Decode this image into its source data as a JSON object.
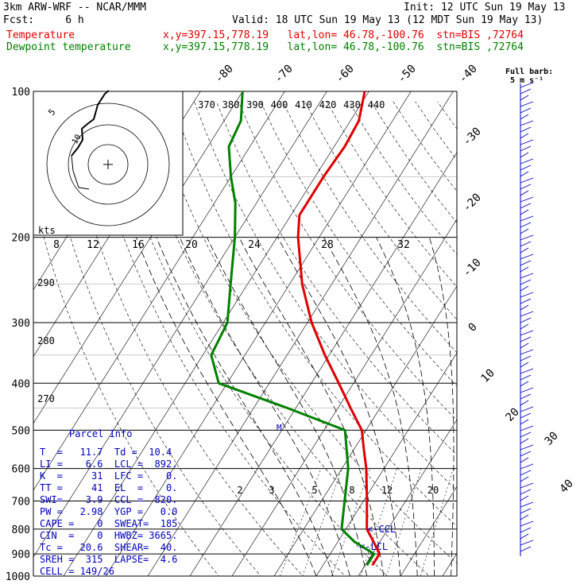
{
  "header": {
    "line1_left": "3km ARW-WRF -- NCAR/MMM",
    "line1_right": "Init: 12 UTC Sun 19 May 13",
    "line2_left": "Fcst:     6 h",
    "line2_right": "Valid: 18 UTC Sun 19 May 13 (12 MDT Sun 19 May 13)",
    "temp_label": "Temperature",
    "temp_info": "x,y=397.15,778.19   lat,lon= 46.78,-100.76  stn=BIS ,72764",
    "dew_label": "Dewpoint temperature",
    "dew_info": "x,y=397.15,778.19   lat,lon= 46.78,-100.76  stn=BIS ,72764",
    "colors": {
      "temperature": "#e00000",
      "dewpoint": "#008000",
      "info": "#0000c0"
    }
  },
  "chart_data": {
    "type": "line",
    "pressure_levels": [
      100,
      200,
      300,
      400,
      500,
      600,
      700,
      800,
      900,
      1000
    ],
    "pressure_labels": [
      "100",
      "200",
      "300",
      "400",
      "500",
      "600",
      "700",
      "800",
      "900",
      "1000"
    ],
    "isotherm_labels": [
      "-80",
      "-70",
      "-60",
      "-50",
      "-40",
      "-30",
      "-20",
      "-10",
      "0",
      "10",
      "20",
      "30",
      "40"
    ],
    "theta_labels": [
      "370",
      "380",
      "390",
      "400",
      "410",
      "420",
      "430",
      "440"
    ],
    "theta_side_labels": [
      "290",
      "280",
      "270"
    ],
    "mixing_ratio_labels": [
      "2",
      "3",
      "5",
      "8",
      "12",
      "20"
    ],
    "hodograph": {
      "unit_label": "kts",
      "ring_labels": [
        "8",
        "12",
        "16",
        "20",
        "24",
        "28",
        "32"
      ],
      "mark_labels": [
        "5",
        "5",
        "10"
      ]
    },
    "wind_barb_note": {
      "line1": "Full barb:",
      "line2": "5 m s⁻¹"
    },
    "annotations": {
      "ccl": "<-CCL",
      "lcl": "<-LCL",
      "m": "M"
    },
    "series": [
      {
        "name": "Temperature",
        "color": "#e00000",
        "profile": [
          [
            950,
            11.7
          ],
          [
            900,
            11.7
          ],
          [
            850,
            8.5
          ],
          [
            800,
            5.0
          ],
          [
            700,
            0.8
          ],
          [
            600,
            -4.2
          ],
          [
            550,
            -7.5
          ],
          [
            500,
            -11.0
          ],
          [
            450,
            -17.0
          ],
          [
            400,
            -23.5
          ],
          [
            350,
            -31.0
          ],
          [
            300,
            -39.0
          ],
          [
            250,
            -47.0
          ],
          [
            200,
            -55.0
          ],
          [
            180,
            -58.0
          ],
          [
            150,
            -58.0
          ],
          [
            130,
            -57.5
          ],
          [
            115,
            -58.0
          ],
          [
            100,
            -61.0
          ]
        ]
      },
      {
        "name": "Dewpoint temperature",
        "color": "#008000",
        "profile": [
          [
            950,
            10.4
          ],
          [
            900,
            10.4
          ],
          [
            850,
            4.0
          ],
          [
            800,
            -1.0
          ],
          [
            700,
            -4.5
          ],
          [
            600,
            -8.5
          ],
          [
            500,
            -15.0
          ],
          [
            450,
            -32.0
          ],
          [
            400,
            -52.0
          ],
          [
            350,
            -58.0
          ],
          [
            300,
            -59.0
          ],
          [
            250,
            -64.0
          ],
          [
            200,
            -70.0
          ],
          [
            170,
            -75.0
          ],
          [
            150,
            -80.0
          ],
          [
            130,
            -85.0
          ],
          [
            115,
            -86.0
          ],
          [
            100,
            -90.0
          ]
        ]
      }
    ]
  },
  "parcel": {
    "title": "Parcel Info",
    "rows": [
      "T  =   11.7  Td =  10.4",
      "LI =    6.6  LCL =  892.",
      "K  =     31  LFC =    0.",
      "TT =     41  EL  =    0.",
      "SWI=    3.9  CCL =  820.",
      "PW =   2.98  YGP =   0.0",
      "CAPE =    0  SWEAT=  185",
      "CIN  =    0  HWBZ= 3665.",
      "Tc =   20.6  SHEAR=  40.",
      "SREH =  315  LAPSE=  4.6",
      "CELL = 149/26"
    ]
  }
}
